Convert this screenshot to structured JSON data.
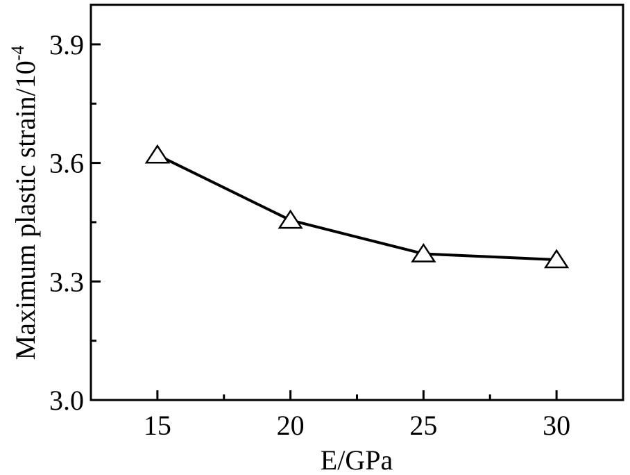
{
  "chart_data": {
    "type": "line",
    "x": [
      15,
      20,
      25,
      30
    ],
    "series": [
      {
        "values": [
          3.62,
          3.455,
          3.37,
          3.355
        ],
        "marker": "open-triangle",
        "color": "#000000"
      }
    ],
    "xlabel": "E/GPa",
    "ylabel": "Maximum plastic strain/10",
    "ylabel_superscript": "-4",
    "xlim": [
      12.5,
      32.5
    ],
    "ylim": [
      3.0,
      4.0
    ],
    "x_major_ticks": [
      15,
      20,
      25,
      30
    ],
    "x_tick_labels": [
      "15",
      "20",
      "25",
      "30"
    ],
    "x_minor_ticks": [
      12.5,
      17.5,
      22.5,
      27.5,
      32.5
    ],
    "y_major_ticks": [
      3.0,
      3.3,
      3.6,
      3.9
    ],
    "y_tick_labels": [
      "3.0",
      "3.3",
      "3.6",
      "3.9"
    ],
    "y_minor_ticks": [
      3.15,
      3.45,
      3.75
    ],
    "grid": false,
    "legend": "none"
  }
}
